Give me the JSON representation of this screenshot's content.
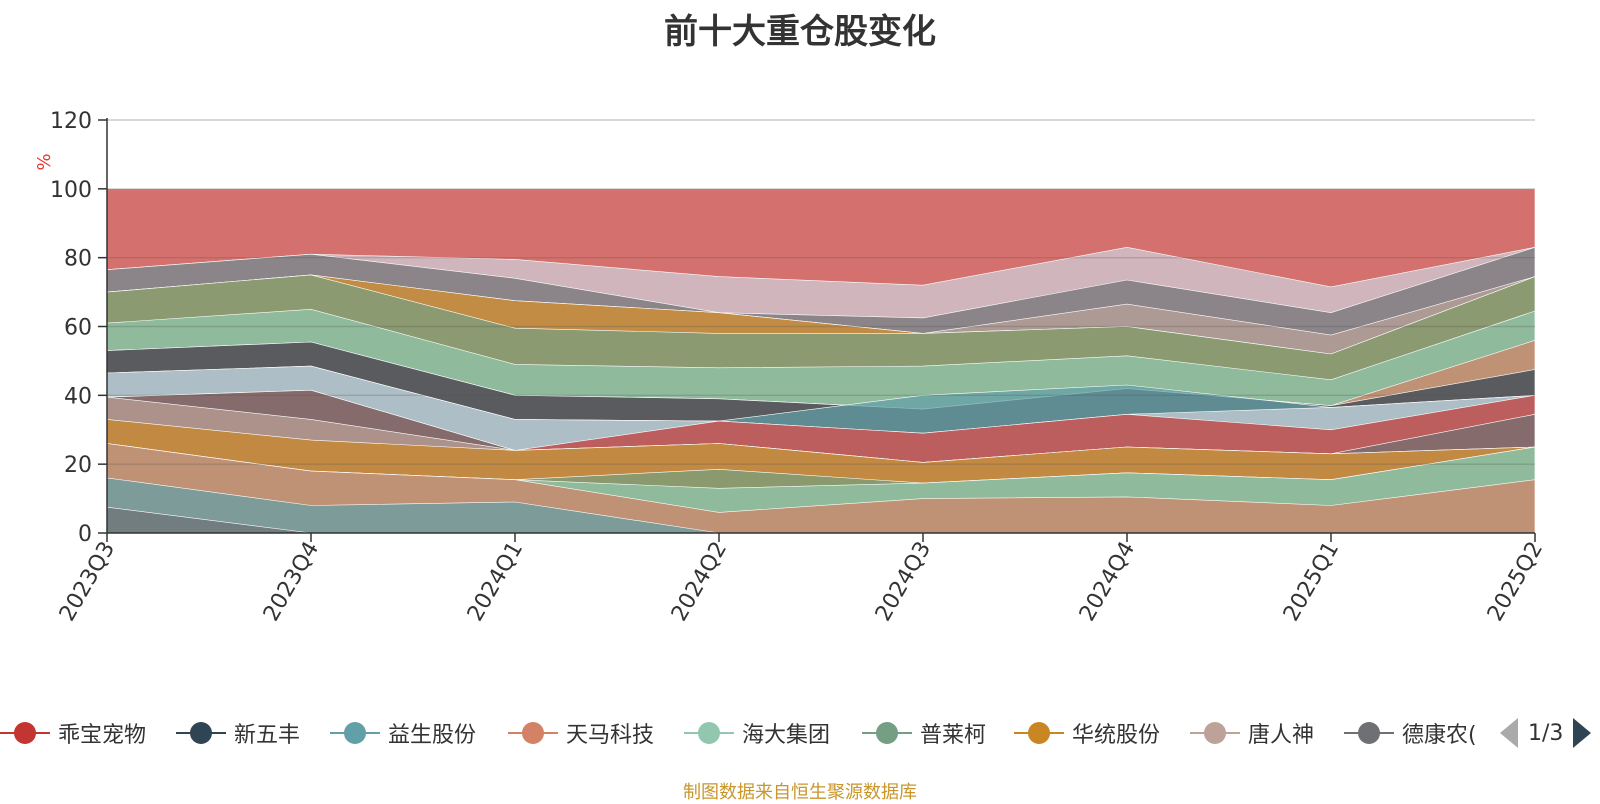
{
  "chart_data": {
    "type": "area",
    "title": "前十大重仓股变化",
    "ylabel": "%",
    "ylim": [
      0,
      120
    ],
    "yticks": [
      "0",
      "20",
      "40",
      "60",
      "80",
      "100",
      "120"
    ],
    "categories": [
      "2023Q3",
      "2023Q4",
      "2024Q1",
      "2024Q2",
      "2024Q3",
      "2024Q4",
      "2025Q1",
      "2025Q2"
    ],
    "grid": true,
    "legend_position": "bottom",
    "series": [
      {
        "name": "乖宝宠物",
        "color": "#c23531"
      },
      {
        "name": "新五丰",
        "color": "#2f4554"
      },
      {
        "name": "益生股份",
        "color": "#61a0a8"
      },
      {
        "name": "天马科技",
        "color": "#d48265"
      },
      {
        "name": "海大集团",
        "color": "#91c7ae"
      },
      {
        "name": "普莱柯",
        "color": "#749f83"
      },
      {
        "name": "华统股份",
        "color": "#ca8622"
      },
      {
        "name": "唐人神",
        "color": "#bda29a"
      },
      {
        "name": "德康农牧",
        "color": "#6e7074"
      }
    ],
    "bands": [
      {
        "color": "#6e7074",
        "upper": [
          7.5,
          0,
          null,
          null,
          null,
          null,
          null,
          null
        ]
      },
      {
        "color": "#61a0a8",
        "upper": [
          16,
          8,
          9,
          0,
          null,
          null,
          null,
          null
        ]
      },
      {
        "color": "#d48265",
        "upper": [
          26,
          18,
          15.5,
          6,
          10,
          10.5,
          8,
          15.5
        ]
      },
      {
        "color": "#91c7ae",
        "upper": [
          null,
          null,
          null,
          13,
          14.5,
          17.5,
          15.5,
          25
        ]
      },
      {
        "color": "#749f83",
        "upper": [
          null,
          null,
          null,
          18.5,
          null,
          null,
          null,
          null
        ]
      },
      {
        "color": "#ca8622",
        "upper": [
          33,
          27,
          24,
          26,
          20.5,
          25,
          23,
          25
        ]
      },
      {
        "color": "#bda29a",
        "upper": [
          39.5,
          33,
          null,
          null,
          null,
          null,
          null,
          null
        ]
      },
      {
        "color": "#6e7074",
        "upper": [
          39.5,
          41.5,
          null,
          null,
          null,
          null,
          null,
          34.5
        ]
      },
      {
        "color": "#c23531",
        "upper": [
          null,
          null,
          null,
          32.5,
          29,
          34.5,
          30,
          40
        ]
      },
      {
        "color": "#ced4dd",
        "upper": [
          46.5,
          48.5,
          33,
          32.5,
          null,
          null,
          36.5,
          null
        ]
      },
      {
        "color": "#61a0a8",
        "upper": [
          null,
          null,
          null,
          null,
          40,
          43,
          null,
          null
        ]
      },
      {
        "color": "#2f4554",
        "upper": [
          53,
          55.5,
          40,
          39,
          36,
          42,
          37,
          47.5
        ]
      },
      {
        "color": "#d48265",
        "upper": [
          null,
          null,
          null,
          null,
          null,
          null,
          null,
          56
        ]
      },
      {
        "color": "#91c7ae",
        "upper": [
          61,
          65,
          49,
          48,
          48.5,
          51.5,
          44.5,
          64.5
        ]
      },
      {
        "color": "#749f83",
        "upper": [
          70,
          75,
          59.5,
          58,
          58,
          60,
          52,
          74.5
        ]
      },
      {
        "color": "#ca8622",
        "upper": [
          null,
          null,
          67.5,
          64,
          null,
          null,
          null,
          null
        ]
      },
      {
        "color": "#bda29a",
        "upper": [
          null,
          null,
          null,
          null,
          null,
          66.5,
          57.5,
          null
        ]
      },
      {
        "color": "#6e7074",
        "upper": [
          76.5,
          81,
          74,
          64,
          62.5,
          73.5,
          64,
          83
        ]
      },
      {
        "color": "#ced4dd",
        "upper": [
          null,
          null,
          79.5,
          74.5,
          72,
          83,
          71.5,
          null
        ]
      },
      {
        "color": "#c23531",
        "upper": [
          100,
          100,
          100,
          100,
          100,
          100,
          100,
          100
        ]
      }
    ]
  },
  "legend": {
    "items": [
      "乖宝宠物",
      "新五丰",
      "益生股份",
      "天马科技",
      "海大集团",
      "普莱柯",
      "华统股份",
      "唐人神",
      "德康农("
    ],
    "pager_text": "1/3"
  },
  "footnote": "制图数据来自恒生聚源数据库"
}
